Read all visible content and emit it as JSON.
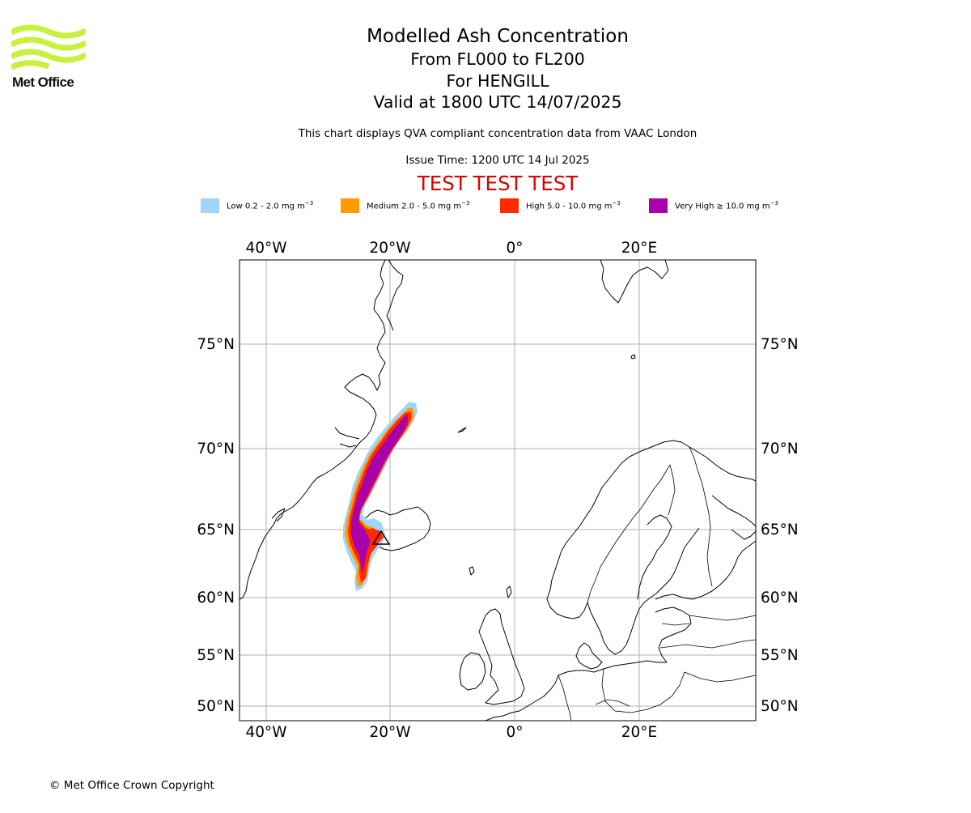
{
  "logo": {
    "text": "Met Office",
    "color": "#c8f03c"
  },
  "header": {
    "title": "Modelled Ash Concentration",
    "line2": "From FL000 to FL200",
    "line3": "For HENGILL",
    "line4": "Valid at 1800 UTC 14/07/2025",
    "subtitle": "This chart displays QVA compliant concentration data from VAAC London",
    "issue_time": "Issue Time: 1200 UTC 14 Jul 2025",
    "test_banner": "TEST TEST TEST"
  },
  "legend": [
    {
      "label": "Low 0.2 - 2.0 mg m",
      "sup": "−3",
      "color": "#a0d4fa"
    },
    {
      "label": "Medium 2.0 - 5.0 mg m",
      "sup": "−3",
      "color": "#ff9a00"
    },
    {
      "label": "High 5.0 - 10.0 mg m",
      "sup": "−3",
      "color": "#ff2a00"
    },
    {
      "label": "Very High ≥ 10.0 mg m",
      "sup": "−3",
      "color": "#a800aa"
    }
  ],
  "map": {
    "lon_labels": [
      "40°W",
      "20°W",
      "0°",
      "20°E"
    ],
    "lat_labels": [
      "75°N",
      "70°N",
      "65°N",
      "60°N",
      "55°N",
      "50°N"
    ],
    "lon_values": [
      -40,
      -20,
      0,
      20
    ],
    "lat_values": [
      75,
      70,
      65,
      60,
      55,
      50
    ],
    "source_volcano": "HENGILL",
    "source_lat": 64.08,
    "source_lon": -21.32,
    "grid": true
  },
  "footer": {
    "copyright": "© Met Office Crown Copyright"
  }
}
